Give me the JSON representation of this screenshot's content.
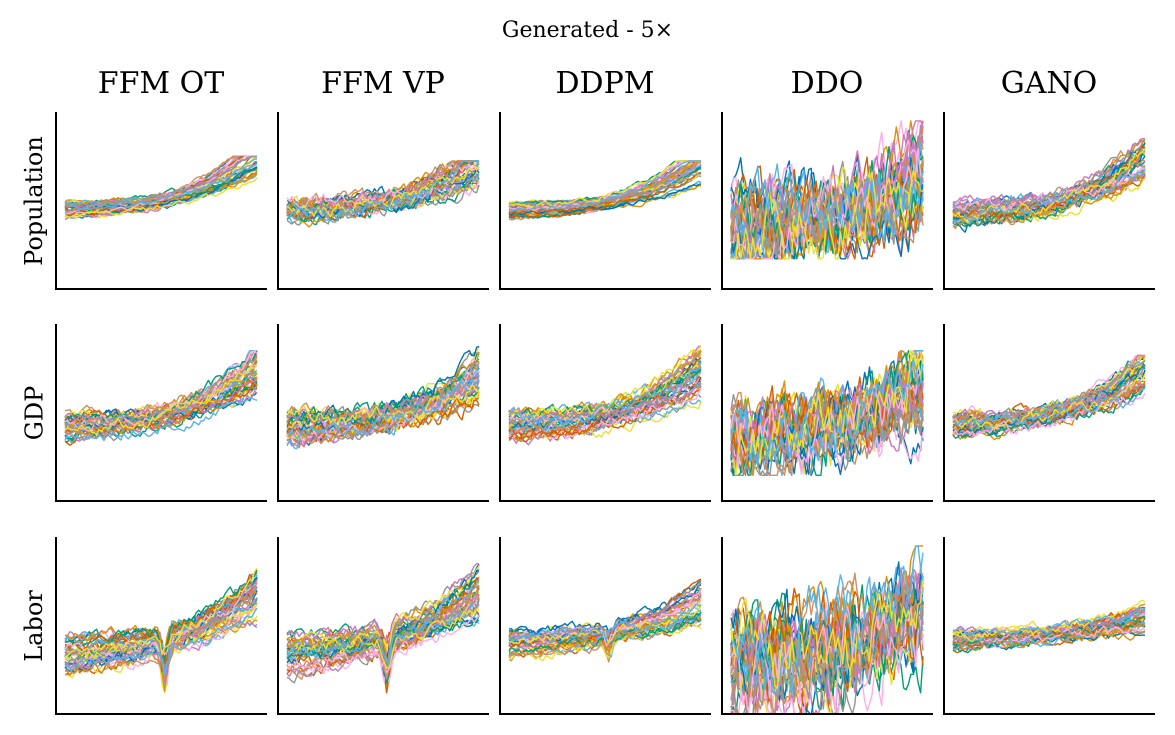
{
  "chart_data": {
    "type": "line",
    "title": "Generated - 5×",
    "columns": [
      "FFM OT",
      "FFM VP",
      "DDPM",
      "DDO",
      "GANO"
    ],
    "rows": [
      "Population",
      "GDP",
      "Labor"
    ],
    "axes": {
      "ticks": "none",
      "spines": [
        "left",
        "bottom"
      ],
      "grid": false
    },
    "legend": "none",
    "series_colors": [
      "#0173b2",
      "#de8f05",
      "#029e73",
      "#d55e00",
      "#cc78bc",
      "#ca9161",
      "#fbafe4",
      "#949494",
      "#ece133",
      "#56b4e9"
    ],
    "panels": [
      [
        {
          "column": "FFM OT",
          "row": "Population",
          "ylim": [
            -1,
            1
          ],
          "range": [
            -0.2,
            0.35
          ],
          "end_spread": 0.55,
          "trend": 0.35,
          "noise": 0.02,
          "dip": 0.0
        },
        {
          "column": "FFM VP",
          "row": "Population",
          "ylim": [
            -1,
            1
          ],
          "range": [
            -0.2,
            0.3
          ],
          "end_spread": 0.55,
          "trend": 0.3,
          "noise": 0.06,
          "dip": 0.0
        },
        {
          "column": "DDPM",
          "row": "Population",
          "ylim": [
            -1,
            1
          ],
          "range": [
            -0.2,
            0.3
          ],
          "end_spread": 0.5,
          "trend": 0.3,
          "noise": 0.02,
          "dip": 0.0
        },
        {
          "column": "DDO",
          "row": "Population",
          "ylim": [
            -1,
            1
          ],
          "range": [
            -0.55,
            0.75
          ],
          "end_spread": 0.8,
          "trend": 0.2,
          "noise": 0.28,
          "dip": 0.0
        },
        {
          "column": "GANO",
          "row": "Population",
          "ylim": [
            -1,
            1
          ],
          "range": [
            -0.25,
            0.55
          ],
          "end_spread": 0.45,
          "trend": 0.4,
          "noise": 0.05,
          "dip": 0.0
        }
      ],
      [
        {
          "column": "FFM OT",
          "row": "GDP",
          "ylim": [
            -1,
            1
          ],
          "range": [
            -0.3,
            0.55
          ],
          "end_spread": 0.6,
          "trend": 0.35,
          "noise": 0.05,
          "dip": 0.0
        },
        {
          "column": "FFM VP",
          "row": "GDP",
          "ylim": [
            -1,
            1
          ],
          "range": [
            -0.3,
            0.6
          ],
          "end_spread": 0.6,
          "trend": 0.35,
          "noise": 0.07,
          "dip": 0.0
        },
        {
          "column": "DDPM",
          "row": "GDP",
          "ylim": [
            -1,
            1
          ],
          "range": [
            -0.3,
            0.6
          ],
          "end_spread": 0.6,
          "trend": 0.35,
          "noise": 0.05,
          "dip": 0.0
        },
        {
          "column": "DDO",
          "row": "GDP",
          "ylim": [
            -1,
            1
          ],
          "range": [
            -0.6,
            0.55
          ],
          "end_spread": 0.7,
          "trend": 0.2,
          "noise": 0.25,
          "dip": 0.0
        },
        {
          "column": "GANO",
          "row": "GDP",
          "ylim": [
            -1,
            1
          ],
          "range": [
            -0.25,
            0.5
          ],
          "end_spread": 0.5,
          "trend": 0.35,
          "noise": 0.05,
          "dip": 0.0
        }
      ],
      [
        {
          "column": "FFM OT",
          "row": "Labor",
          "ylim": [
            -1,
            1
          ],
          "range": [
            -0.65,
            0.55
          ],
          "end_spread": 0.6,
          "trend": 0.3,
          "noise": 0.05,
          "dip": 0.45
        },
        {
          "column": "FFM VP",
          "row": "Labor",
          "ylim": [
            -1,
            1
          ],
          "range": [
            -0.65,
            0.55
          ],
          "end_spread": 0.6,
          "trend": 0.3,
          "noise": 0.06,
          "dip": 0.45
        },
        {
          "column": "DDPM",
          "row": "Labor",
          "ylim": [
            -1,
            1
          ],
          "range": [
            -0.4,
            0.45
          ],
          "end_spread": 0.45,
          "trend": 0.2,
          "noise": 0.04,
          "dip": 0.2
        },
        {
          "column": "DDO",
          "row": "Labor",
          "ylim": [
            -1,
            1
          ],
          "range": [
            -0.9,
            0.75
          ],
          "end_spread": 0.8,
          "trend": 0.1,
          "noise": 0.32,
          "dip": 0.2
        },
        {
          "column": "GANO",
          "row": "Labor",
          "ylim": [
            -1,
            1
          ],
          "range": [
            -0.3,
            0.25
          ],
          "end_spread": 0.3,
          "trend": 0.05,
          "noise": 0.04,
          "dip": 0.0
        }
      ]
    ]
  }
}
